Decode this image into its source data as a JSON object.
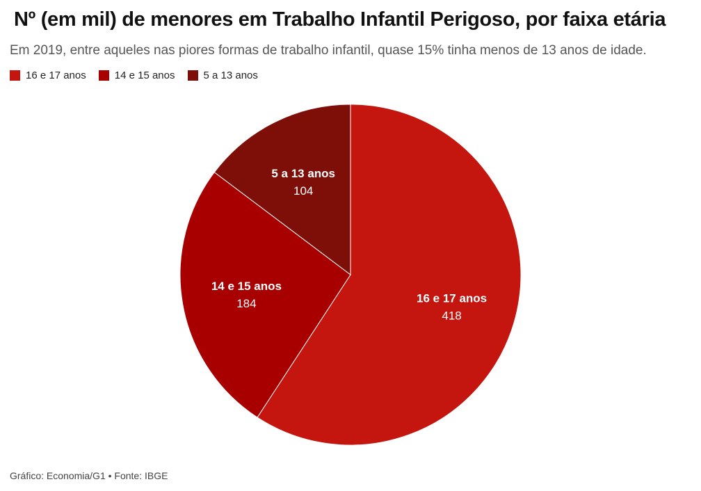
{
  "header": {
    "title": "Nº (em mil) de menores em Trabalho Infantil Perigoso, por faixa etária",
    "subtitle": "Em 2019, entre aqueles nas piores formas de trabalho infantil, quase 15% tinha menos de 13 anos de idade."
  },
  "footer": {
    "credit": "Gráfico: Economia/G1 • Fonte: IBGE"
  },
  "chart_data": {
    "type": "pie",
    "title": "Nº (em mil) de menores em Trabalho Infantil Perigoso, por faixa etária",
    "legend_position": "top-left",
    "categories": [
      "16 e 17 anos",
      "14 e 15 anos",
      "5 a 13 anos"
    ],
    "values": [
      418,
      184,
      104
    ],
    "colors": [
      "#c4160f",
      "#a80000",
      "#7e0f08"
    ],
    "data_labels": [
      "418",
      "184",
      "104"
    ]
  }
}
